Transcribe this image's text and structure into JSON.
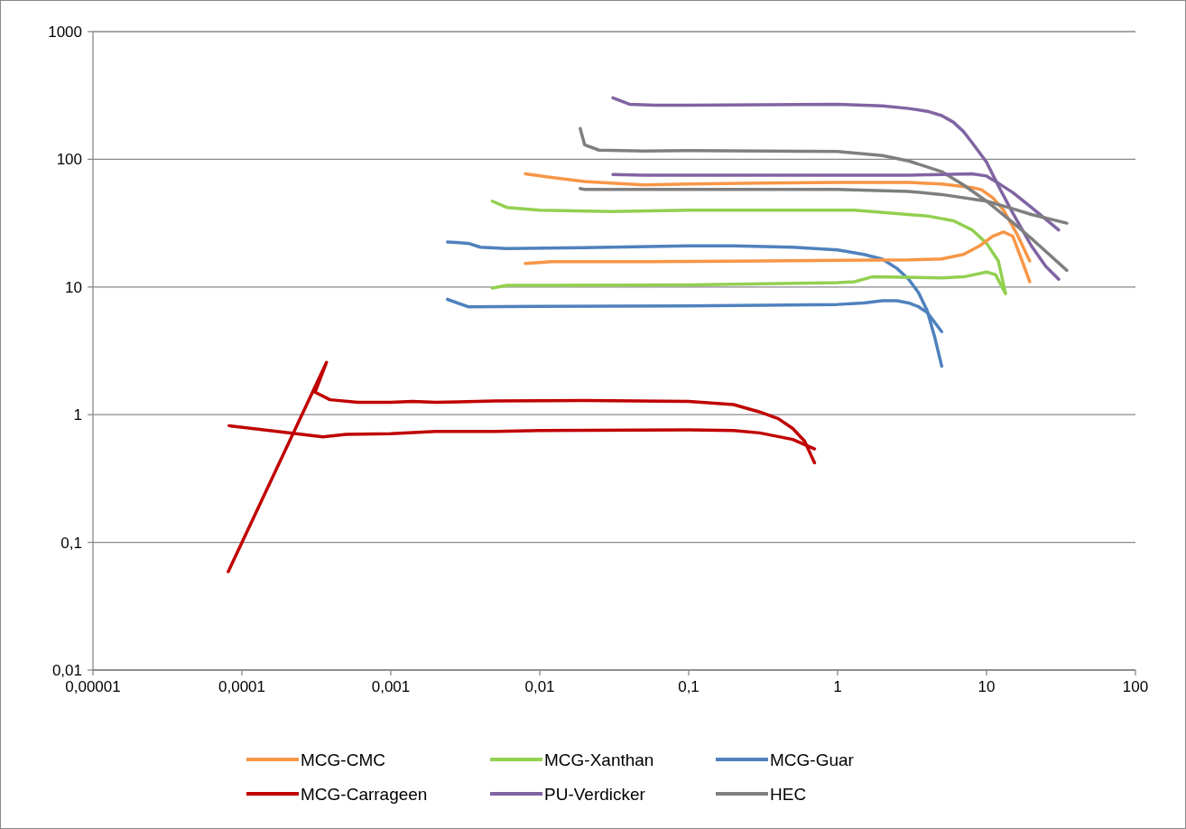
{
  "chart_data": {
    "type": "line",
    "log": "xy",
    "grid": "y",
    "legend": "bottom",
    "line_style": "solid",
    "marker": "none",
    "xlim": [
      1e-05,
      100
    ],
    "ylim": [
      0.01,
      1000
    ],
    "xticks": [
      {
        "value": 1e-05,
        "label": "0,00001"
      },
      {
        "value": 0.0001,
        "label": "0,0001"
      },
      {
        "value": 0.001,
        "label": "0,001"
      },
      {
        "value": 0.01,
        "label": "0,01"
      },
      {
        "value": 0.1,
        "label": "0,1"
      },
      1,
      10,
      100
    ],
    "yticks": [
      {
        "value": 0.01,
        "label": "0,01"
      },
      {
        "value": 0.1,
        "label": "0,1"
      },
      1,
      10,
      100,
      1000
    ],
    "series": [
      {
        "name": "MCG-CMC",
        "color": "#f79646",
        "x": [
          0.008,
          0.012,
          0.02,
          0.03,
          0.05,
          0.1,
          0.3,
          1,
          3,
          5,
          8,
          9.2,
          11,
          13,
          16,
          19.5
        ],
        "values": [
          77,
          72,
          67,
          65,
          63,
          64,
          65,
          66,
          66,
          64,
          60,
          58,
          50,
          40,
          26,
          16
        ]
      },
      {
        "name": "MCG-Xanthan",
        "color": "#92d050",
        "x": [
          0.0048,
          0.006,
          0.01,
          0.03,
          0.1,
          0.3,
          1,
          1.3,
          1.7,
          4,
          6,
          8,
          10,
          12,
          13.4
        ],
        "values": [
          47,
          42,
          40,
          39,
          40,
          40,
          40,
          40,
          39,
          36,
          33,
          28,
          22,
          16,
          8.9
        ]
      },
      {
        "name": "MCG-Guar",
        "color": "#4f81bd",
        "x": [
          0.0024,
          0.0033,
          0.004,
          0.006,
          0.02,
          0.1,
          0.2,
          0.5,
          1,
          1.5,
          2,
          2.5,
          3,
          3.5,
          4,
          4.5,
          5
        ],
        "values": [
          22.5,
          22,
          20.5,
          20,
          20.3,
          21,
          21,
          20.5,
          19.5,
          18,
          16.5,
          14,
          11.5,
          9,
          6.5,
          4,
          2.4
        ]
      },
      {
        "name": "MCG-Carrageen",
        "color": "#c00000",
        "x": [
          8.1e-05,
          0.00037,
          0.00031,
          0.00039,
          0.0006,
          0.001,
          0.0014,
          0.002,
          0.005,
          0.02,
          0.1,
          0.2,
          0.3,
          0.4,
          0.5,
          0.6,
          0.7
        ],
        "values": [
          0.059,
          2.57,
          1.5,
          1.31,
          1.25,
          1.25,
          1.27,
          1.25,
          1.28,
          1.29,
          1.27,
          1.2,
          1.05,
          0.93,
          0.78,
          0.62,
          0.42
        ]
      },
      {
        "name": "PU-Verdicker",
        "color": "#8064a2",
        "x": [
          0.031,
          0.04,
          0.06,
          0.1,
          1,
          2,
          3,
          4,
          5,
          6,
          7,
          8,
          10,
          12,
          15,
          20,
          25,
          30.5
        ],
        "values": [
          303,
          270,
          265,
          265,
          270,
          262,
          250,
          238,
          220,
          195,
          165,
          135,
          95,
          62,
          38,
          21,
          14.5,
          11.5
        ]
      },
      {
        "name": "HEC",
        "color": "#7f7f7f",
        "x": [
          0.0187,
          0.02,
          0.025,
          0.05,
          0.1,
          1,
          2,
          3,
          5,
          7,
          10,
          15,
          20,
          34.6
        ],
        "values": [
          174,
          130,
          118,
          116,
          117,
          115,
          107,
          97,
          80,
          63,
          47,
          32,
          24,
          13.5
        ]
      },
      {
        "color": "#f79646",
        "x": [
          0.008,
          0.012,
          0.05,
          0.3,
          1,
          3,
          5,
          7,
          9,
          11,
          13,
          15,
          17,
          19.5
        ],
        "values": [
          15.3,
          15.8,
          15.8,
          16,
          16.2,
          16.3,
          16.6,
          18,
          21,
          25,
          27,
          25,
          17,
          11
        ]
      },
      {
        "color": "#92d050",
        "x": [
          0.0048,
          0.006,
          0.01,
          0.1,
          1,
          1.3,
          1.7,
          5,
          7,
          10,
          11.5,
          12.7,
          13.4
        ],
        "values": [
          9.8,
          10.3,
          10.3,
          10.4,
          10.8,
          11,
          12,
          11.8,
          12,
          13.1,
          12.5,
          10,
          8.9
        ]
      },
      {
        "color": "#4f81bd",
        "x": [
          0.0024,
          0.0033,
          0.01,
          0.1,
          1,
          1.5,
          2,
          2.5,
          3,
          3.5,
          4,
          5
        ],
        "values": [
          8,
          7,
          7.05,
          7.1,
          7.3,
          7.5,
          7.8,
          7.8,
          7.5,
          7,
          6.3,
          4.47
        ]
      },
      {
        "color": "#c00000",
        "x": [
          8.2e-05,
          0.00035,
          0.0005,
          0.001,
          0.002,
          0.005,
          0.01,
          0.1,
          0.2,
          0.3,
          0.5,
          0.7
        ],
        "values": [
          0.82,
          0.67,
          0.7,
          0.71,
          0.74,
          0.74,
          0.75,
          0.76,
          0.75,
          0.72,
          0.64,
          0.54
        ]
      },
      {
        "color": "#8064a2",
        "x": [
          0.031,
          0.05,
          0.1,
          1,
          3,
          5,
          8,
          10,
          12,
          15,
          20,
          30.5
        ],
        "values": [
          76,
          75,
          75,
          75,
          75,
          76,
          77,
          74,
          65,
          55,
          42,
          28
        ]
      },
      {
        "color": "#7f7f7f",
        "x": [
          0.0187,
          0.02,
          0.1,
          1,
          3,
          5,
          10,
          15,
          20,
          34.6
        ],
        "values": [
          59,
          58,
          58,
          58,
          56,
          53,
          47,
          41,
          37,
          31.6
        ]
      }
    ]
  }
}
